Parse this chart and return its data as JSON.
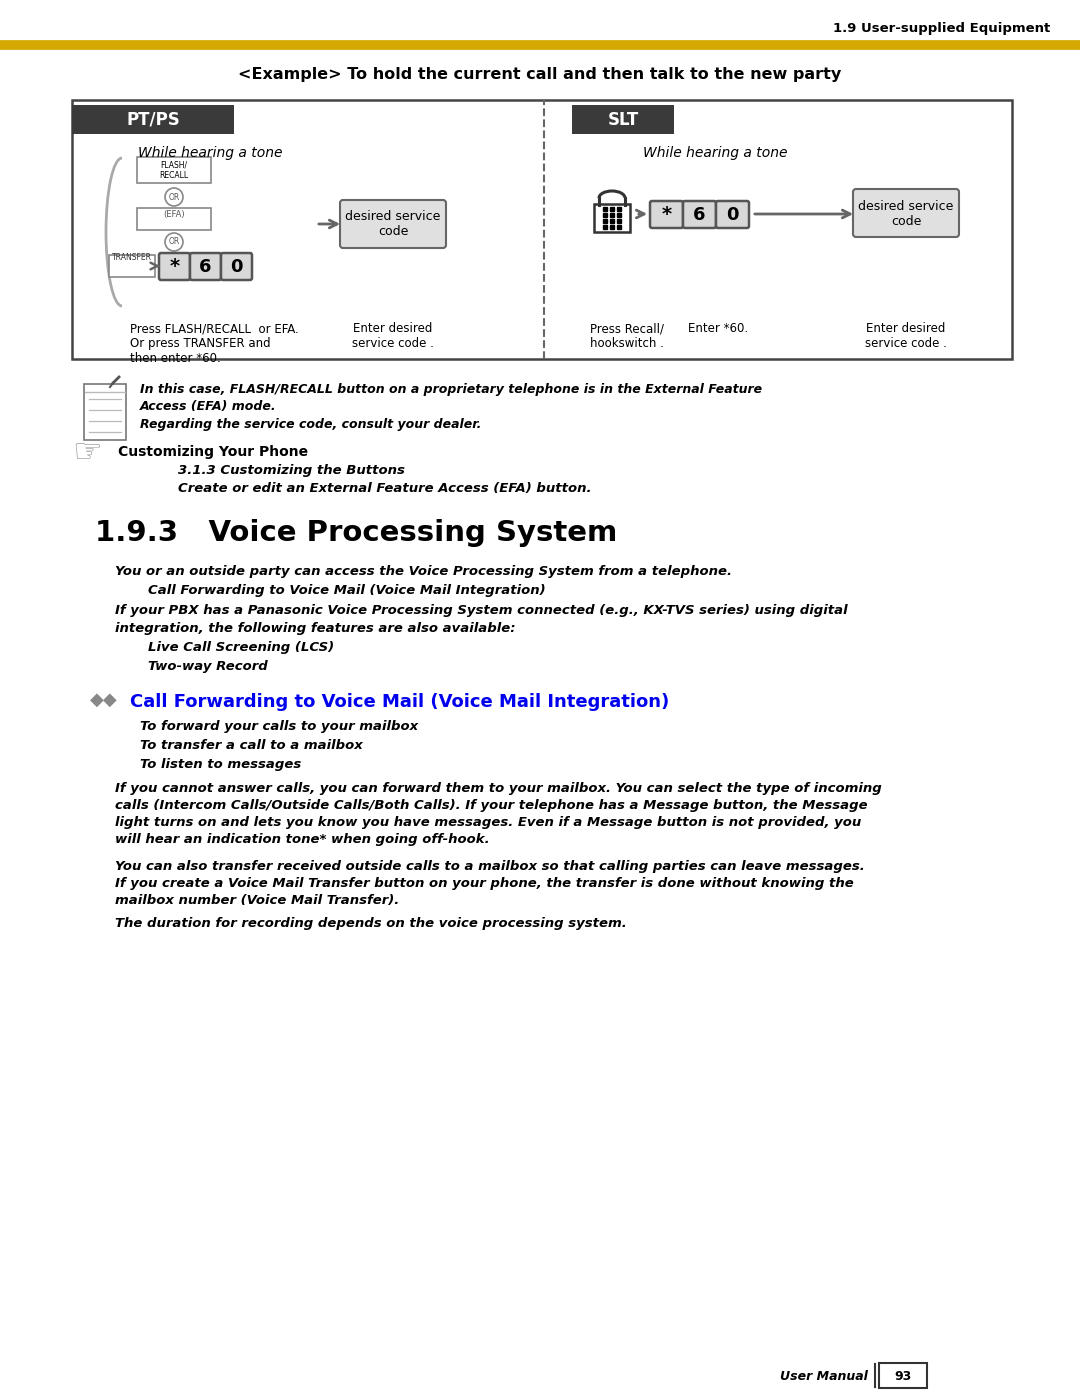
{
  "page_bg": "#ffffff",
  "header_text": "1.9 User-supplied Equipment",
  "gold_line_color": "#D4A800",
  "example_title": "<Example> To hold the current call and then talk to the new party",
  "diagram_border_color": "#444444",
  "pt_ps_label": "PT/PS",
  "slt_label": "SLT",
  "while_hearing": "While hearing a tone",
  "label_dark_bg": "#3a3a3a",
  "label_text_color": "#ffffff",
  "desired_code_bg": "#e0e0e0",
  "key_bg": "#d8d8d8",
  "key_border": "#555555",
  "pt_desc1": "Press FLASH/RECALL  or EFA.",
  "pt_desc2": "Or press TRANSFER and",
  "pt_desc3": "then enter *60.",
  "enter_desired": "Enter desired\nservice code .",
  "press_recall": "Press Recall/\nhookswitch .",
  "enter_star60": "Enter *60.",
  "note_text1": "In this case, FLASH/RECALL button on a proprietary telephone is in the External Feature",
  "note_text2": "Access (EFA) mode.",
  "note_text3": "Regarding the service code, consult your dealer.",
  "customizing_title": "Customizing Your Phone",
  "customizing_sub1": "3.1.3 Customizing the Buttons",
  "customizing_sub2": "Create or edit an External Feature Access (EFA) button.",
  "section_title": "1.9.3   Voice Processing System",
  "body1": "You or an outside party can access the Voice Processing System from a telephone.",
  "body1a": "Call Forwarding to Voice Mail (Voice Mail Integration)",
  "body2a": "If your PBX has a Panasonic Voice Processing System connected (e.g., KX-TVS series) using digital",
  "body2b": "integration, the following features are also available:",
  "body3a": "Live Call Screening (LCS)",
  "body3b": "Two-way Record",
  "call_fwd_title": "Call Forwarding to Voice Mail (Voice Mail Integration)",
  "call_fwd_color": "#0000EE",
  "diamond_color": "#888888",
  "sub1": "To forward your calls to your mailbox",
  "sub2": "To transfer a call to a mailbox",
  "sub3": "To listen to messages",
  "body4a": "If you cannot answer calls, you can forward them to your mailbox. You can select the type of incoming",
  "body4b": "calls (Intercom Calls/Outside Calls/Both Calls). If your telephone has a Message button, the Message",
  "body4c": "light turns on and lets you know you have messages. Even if a Message button is not provided, you",
  "body4d": "will hear an indication tone* when going off-hook.",
  "body5a": "You can also transfer received outside calls to a mailbox so that calling parties can leave messages.",
  "body5b": "If you create a Voice Mail Transfer button on your phone, the transfer is done without knowing the",
  "body5c": "mailbox number (Voice Mail Transfer).",
  "body6": "The duration for recording depends on the voice processing system.",
  "footer_text": "User Manual",
  "footer_page": "93",
  "flash_recall_label": "FLASH/\nRECALL",
  "or_label": "OR",
  "efa_label": "(EFA)",
  "transfer_label": "TRANSFER",
  "star_char": "*",
  "six_char": "6",
  "zero_char": "0",
  "desired_service_code": "desired service\ncode"
}
